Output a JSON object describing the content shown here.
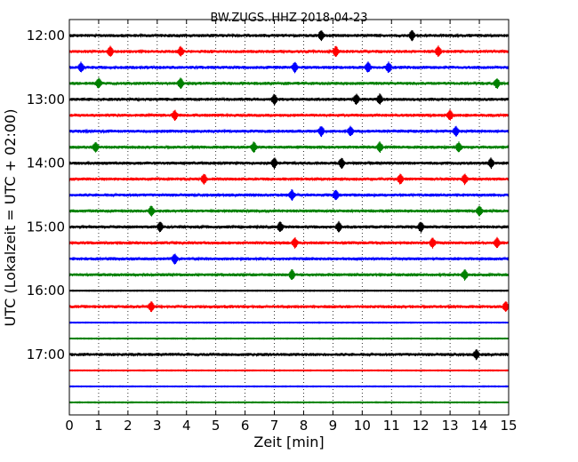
{
  "chart_data": {
    "type": "line",
    "title": "BW.ZUGS..HHZ 2018-04-23",
    "xlabel": "Zeit  [min]",
    "ylabel": "UTC (Lokalzeit = UTC + 02:00)",
    "xlim": [
      0,
      15
    ],
    "x_ticks": [
      "0",
      "1",
      "2",
      "3",
      "4",
      "5",
      "6",
      "7",
      "8",
      "9",
      "10",
      "11",
      "12",
      "13",
      "14",
      "15"
    ],
    "y_tick_labels": [
      "12:00",
      "13:00",
      "14:00",
      "15:00",
      "16:00",
      "17:00"
    ],
    "grid": "vertical dotted at each minute",
    "color_cycle": [
      "#000000",
      "#ff0000",
      "#0000ff",
      "#008000"
    ],
    "trace_interval_minutes": 15,
    "series": [
      {
        "start": "12:00",
        "color": "#000000",
        "events": [
          8.6,
          11.7
        ]
      },
      {
        "start": "12:15",
        "color": "#ff0000",
        "events": [
          1.4,
          3.8,
          9.1,
          12.6
        ]
      },
      {
        "start": "12:30",
        "color": "#0000ff",
        "events": [
          0.4,
          7.7,
          10.2,
          10.9
        ]
      },
      {
        "start": "12:45",
        "color": "#008000",
        "events": [
          1.0,
          3.8,
          14.6
        ]
      },
      {
        "start": "13:00",
        "color": "#000000",
        "events": [
          7.0,
          9.8,
          10.6
        ]
      },
      {
        "start": "13:15",
        "color": "#ff0000",
        "events": [
          3.6,
          13.0
        ]
      },
      {
        "start": "13:30",
        "color": "#0000ff",
        "events": [
          8.6,
          9.6,
          13.2
        ]
      },
      {
        "start": "13:45",
        "color": "#008000",
        "events": [
          0.9,
          6.3,
          10.6,
          13.3
        ]
      },
      {
        "start": "14:00",
        "color": "#000000",
        "events": [
          7.0,
          9.3,
          14.4
        ]
      },
      {
        "start": "14:15",
        "color": "#ff0000",
        "events": [
          4.6,
          11.3,
          13.5
        ]
      },
      {
        "start": "14:30",
        "color": "#0000ff",
        "events": [
          7.6,
          9.1
        ]
      },
      {
        "start": "14:45",
        "color": "#008000",
        "events": [
          2.8,
          14.0
        ]
      },
      {
        "start": "15:00",
        "color": "#000000",
        "events": [
          3.1,
          7.2,
          9.2,
          12.0
        ]
      },
      {
        "start": "15:15",
        "color": "#ff0000",
        "events": [
          7.7,
          12.4,
          14.6
        ]
      },
      {
        "start": "15:30",
        "color": "#0000ff",
        "events": [
          3.6
        ]
      },
      {
        "start": "15:45",
        "color": "#008000",
        "events": [
          7.6,
          13.5
        ]
      },
      {
        "start": "16:00",
        "color": "#000000",
        "events": []
      },
      {
        "start": "16:15",
        "color": "#ff0000",
        "events": [
          2.8,
          14.9
        ]
      },
      {
        "start": "16:30",
        "color": "#0000ff",
        "events": []
      },
      {
        "start": "16:45",
        "color": "#008000",
        "events": []
      },
      {
        "start": "17:00",
        "color": "#000000",
        "events": [
          13.9
        ]
      },
      {
        "start": "17:15",
        "color": "#ff0000",
        "events": []
      },
      {
        "start": "17:30",
        "color": "#0000ff",
        "events": []
      },
      {
        "start": "17:45",
        "color": "#008000",
        "events": []
      }
    ]
  }
}
